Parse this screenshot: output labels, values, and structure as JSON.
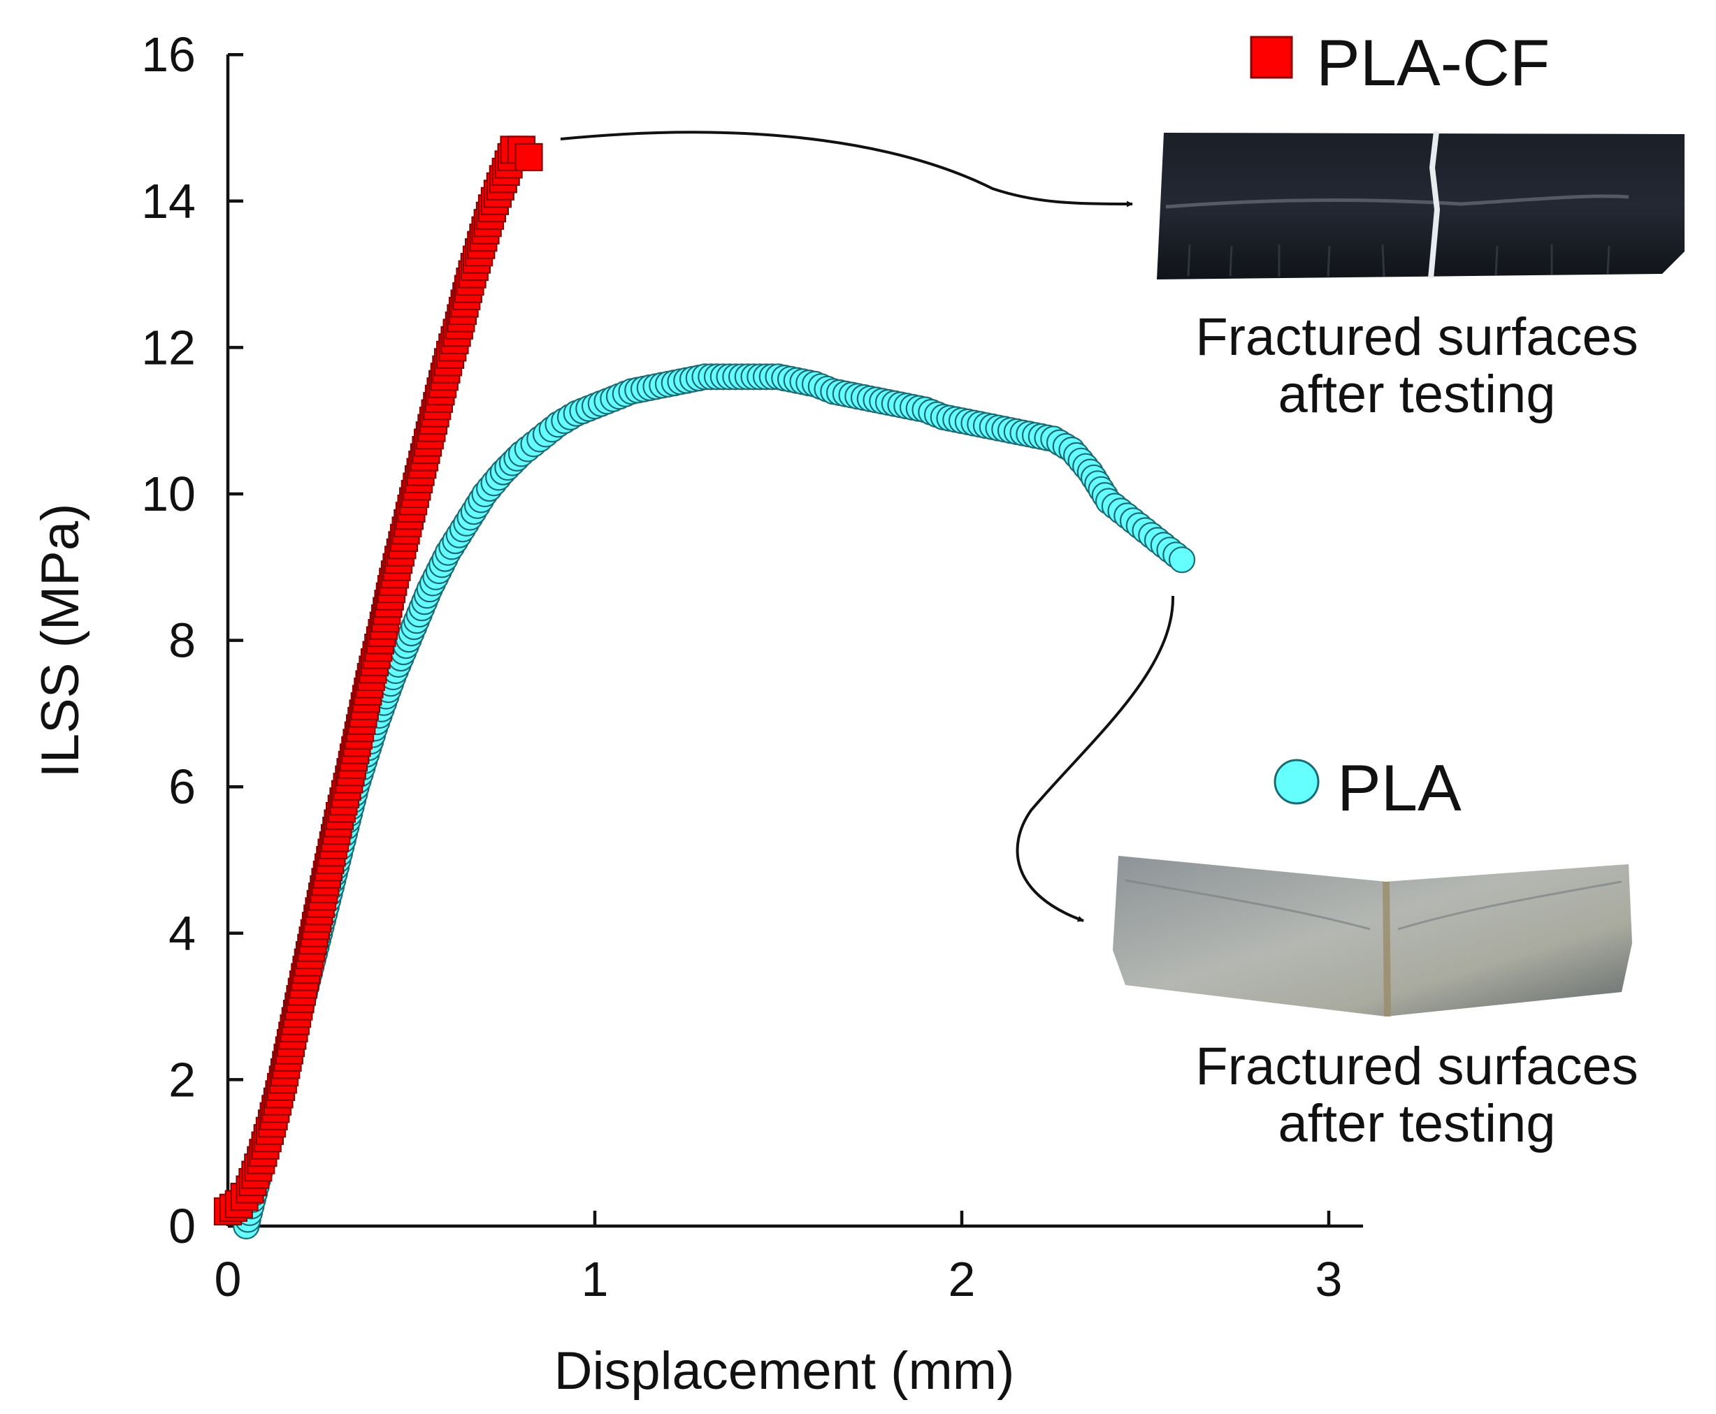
{
  "chart_data": {
    "type": "scatter",
    "xlabel": "Displacement (mm)",
    "ylabel": "ILSS (MPa)",
    "xlim": [
      0,
      3.1
    ],
    "ylim": [
      0,
      16
    ],
    "x_ticks": [
      "0",
      "1",
      "2",
      "3"
    ],
    "y_ticks": [
      "0",
      "2",
      "4",
      "6",
      "8",
      "10",
      "12",
      "14",
      "16"
    ],
    "grid": false,
    "legend_placement": "right, next to each specimen photo",
    "series": [
      {
        "name": "PLA-CF",
        "marker": "square",
        "color": "#ff0000",
        "edge_color": "#8b0000",
        "x": [
          0.0,
          0.03,
          0.06,
          0.09,
          0.12,
          0.15,
          0.18,
          0.21,
          0.24,
          0.27,
          0.3,
          0.33,
          0.36,
          0.39,
          0.42,
          0.45,
          0.48,
          0.51,
          0.54,
          0.57,
          0.6,
          0.63,
          0.66,
          0.69,
          0.72,
          0.75,
          0.78,
          0.8,
          0.82
        ],
        "y": [
          0.2,
          0.3,
          0.5,
          0.9,
          1.4,
          2.0,
          2.7,
          3.4,
          4.1,
          4.8,
          5.5,
          6.1,
          6.8,
          7.5,
          8.1,
          8.8,
          9.4,
          10.0,
          10.6,
          11.2,
          11.8,
          12.3,
          12.9,
          13.4,
          13.9,
          14.3,
          14.7,
          14.7,
          14.6
        ]
      },
      {
        "name": "PLA",
        "marker": "circle",
        "color": "#66ffff",
        "edge_color": "#1a6b73",
        "x": [
          0.05,
          0.1,
          0.15,
          0.2,
          0.25,
          0.3,
          0.35,
          0.4,
          0.45,
          0.5,
          0.55,
          0.6,
          0.65,
          0.7,
          0.75,
          0.8,
          0.85,
          0.9,
          0.95,
          1.0,
          1.05,
          1.1,
          1.15,
          1.2,
          1.25,
          1.3,
          1.35,
          1.4,
          1.45,
          1.5,
          1.55,
          1.6,
          1.65,
          1.7,
          1.75,
          1.8,
          1.85,
          1.9,
          1.95,
          2.0,
          2.05,
          2.1,
          2.15,
          2.2,
          2.25,
          2.3,
          2.35,
          2.4,
          2.45,
          2.5,
          2.55,
          2.6
        ],
        "y": [
          0.0,
          1.0,
          2.0,
          3.0,
          4.0,
          5.0,
          6.0,
          6.8,
          7.5,
          8.1,
          8.7,
          9.2,
          9.6,
          10.0,
          10.3,
          10.55,
          10.75,
          10.95,
          11.1,
          11.2,
          11.3,
          11.4,
          11.45,
          11.5,
          11.55,
          11.6,
          11.6,
          11.6,
          11.6,
          11.6,
          11.55,
          11.5,
          11.4,
          11.35,
          11.3,
          11.25,
          11.2,
          11.15,
          11.05,
          11.0,
          10.95,
          10.9,
          10.85,
          10.8,
          10.75,
          10.6,
          10.3,
          9.9,
          9.7,
          9.5,
          9.3,
          9.1
        ]
      }
    ],
    "annotations": [
      {
        "text": "Fractured surfaces\nafter testing",
        "refers_to": "PLA-CF"
      },
      {
        "text": "Fractured surfaces\nafter testing",
        "refers_to": "PLA"
      }
    ]
  },
  "legend": {
    "pla_cf": "PLA-CF",
    "pla": "PLA"
  },
  "captions": {
    "top_line1": "Fractured surfaces",
    "top_line2": "after testing",
    "bottom_line1": "Fractured surfaces",
    "bottom_line2": "after testing"
  },
  "specimen_photos": {
    "pla_cf": "black carbon-fibre specimen bar cracked through the middle",
    "pla": "grey PLA specimen bar bent into a V shape"
  }
}
